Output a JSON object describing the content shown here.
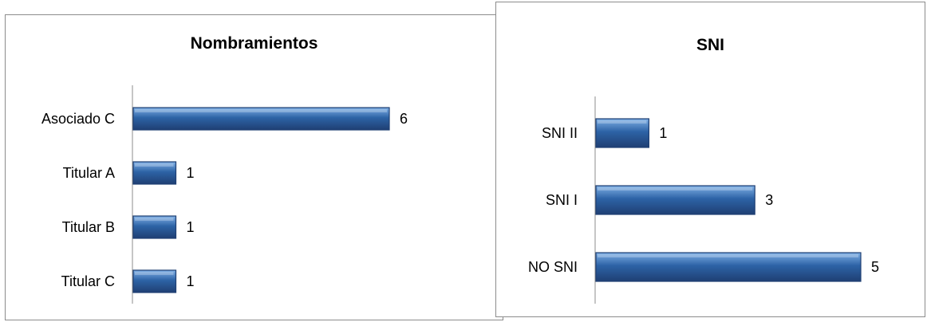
{
  "colors": {
    "bar_dark": "#2d63a6",
    "bar_light": "#7fb0e6",
    "bar_edge": "#1f3f73",
    "axis": "#8c8c8c"
  },
  "chart_data": [
    {
      "type": "bar",
      "orientation": "horizontal",
      "title": "Nombramientos",
      "categories": [
        "Asociado C",
        "Titular A",
        "Titular B",
        "Titular C"
      ],
      "values": [
        6,
        1,
        1,
        1
      ],
      "data_labels": [
        "6",
        "1",
        "1",
        "1"
      ],
      "xlim": [
        0,
        6
      ],
      "grid": false,
      "legend": "none"
    },
    {
      "type": "bar",
      "orientation": "horizontal",
      "title": "SNI",
      "categories": [
        "SNI II",
        "SNI I",
        "NO SNI"
      ],
      "values": [
        1,
        3,
        5
      ],
      "data_labels": [
        "1",
        "3",
        "5"
      ],
      "xlim": [
        0,
        5
      ],
      "grid": false,
      "legend": "none"
    }
  ]
}
